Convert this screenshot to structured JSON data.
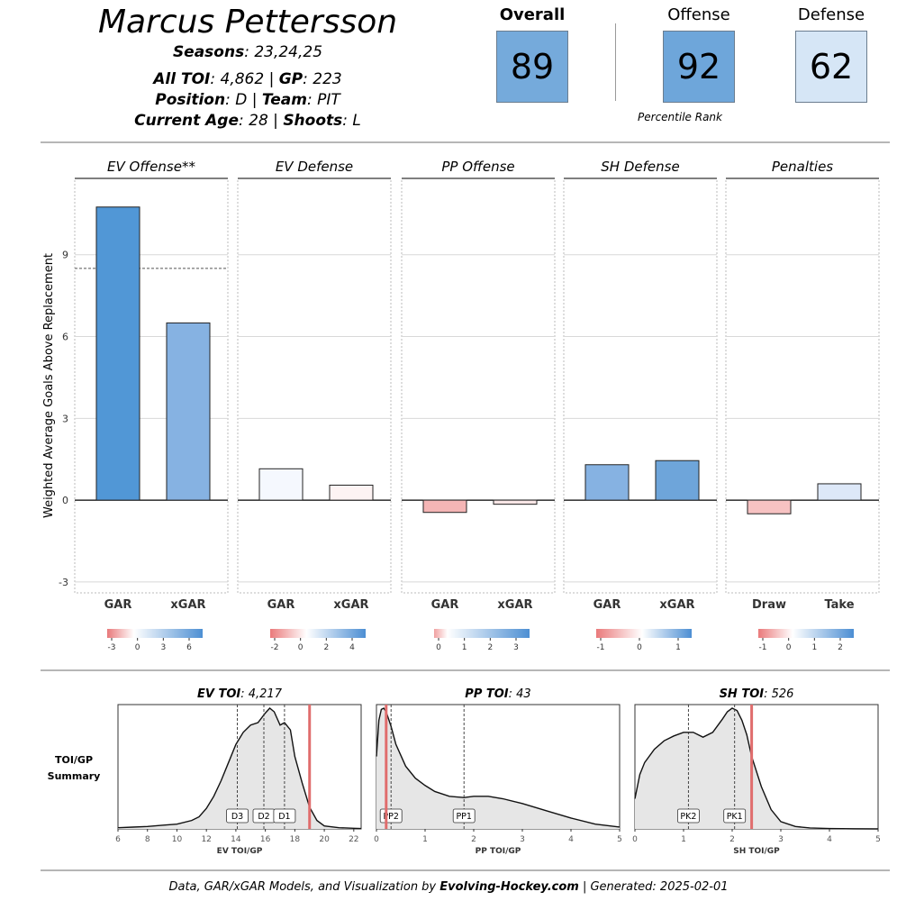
{
  "header": {
    "player_name": "Marcus Pettersson",
    "seasons_label": "Seasons",
    "seasons_value": ": 23,24,25",
    "toi_label": "All TOI",
    "toi_value": ": 4,862 | ",
    "gp_label": "GP",
    "gp_value": ": 223",
    "position_label": "Position",
    "position_value": ": D | ",
    "team_label": "Team",
    "team_value": ": PIT",
    "age_label": "Current Age",
    "age_value": ": 28 | ",
    "shoots_label": "Shoots",
    "shoots_value": ": L"
  },
  "scores": {
    "overall_label": "Overall",
    "overall_value": "89",
    "overall_color": "#75aadb",
    "offense_label": "Offense",
    "offense_value": "92",
    "offense_color": "#6ea6da",
    "defense_label": "Defense",
    "defense_value": "62",
    "defense_color": "#d6e6f6",
    "percentile_note": "Percentile Rank"
  },
  "chart_data": [
    {
      "type": "bar",
      "ylabel": "Weighted Average Goals Above Replacement",
      "ylim": [
        -3.4,
        11.8
      ],
      "yticks": [
        -3,
        0,
        3,
        6,
        9
      ],
      "reference_line": 8.5,
      "panels": [
        {
          "title": "EV Offense**",
          "categories": [
            "GAR",
            "xGAR"
          ],
          "values": [
            10.75,
            6.5
          ],
          "colors": [
            "#5197d6",
            "#86b2e2"
          ],
          "legend_ticks": [
            "-3",
            "0",
            "3",
            "6"
          ]
        },
        {
          "title": "EV Defense",
          "categories": [
            "GAR",
            "xGAR"
          ],
          "values": [
            1.15,
            0.55
          ],
          "colors": [
            "#f5f8fe",
            "#fdf3f3"
          ],
          "legend_ticks": [
            "-2",
            "0",
            "2",
            "4"
          ]
        },
        {
          "title": "PP Offense",
          "categories": [
            "GAR",
            "xGAR"
          ],
          "values": [
            -0.45,
            -0.15
          ],
          "colors": [
            "#f4b5b5",
            "#f9e6e6"
          ],
          "legend_ticks": [
            "0",
            "1",
            "2",
            "3"
          ]
        },
        {
          "title": "SH Defense",
          "categories": [
            "GAR",
            "xGAR"
          ],
          "values": [
            1.3,
            1.45
          ],
          "colors": [
            "#86b2e2",
            "#6ea5da"
          ],
          "legend_ticks": [
            "-1",
            "0",
            "1"
          ]
        },
        {
          "title": "Penalties",
          "categories": [
            "Draw",
            "Take"
          ],
          "values": [
            -0.5,
            0.6
          ],
          "colors": [
            "#f7c2c2",
            "#dde8f8"
          ],
          "legend_ticks": [
            "-1",
            "0",
            "1",
            "2"
          ]
        }
      ]
    },
    {
      "type": "area",
      "row_label": [
        "TOI/GP",
        "Summary"
      ],
      "panels": [
        {
          "title_label": "EV TOI",
          "title_value": ": 4,217",
          "xlabel": "EV TOI/GP",
          "xlim": [
            6,
            22.5
          ],
          "xticks": [
            6,
            8,
            10,
            12,
            14,
            16,
            18,
            20,
            22
          ],
          "player_value": 19.0,
          "markers": [
            {
              "label": "D3",
              "x": 14.1
            },
            {
              "label": "D2",
              "x": 15.9
            },
            {
              "label": "D1",
              "x": 17.3
            }
          ],
          "density_x": [
            6,
            7,
            8,
            9,
            10,
            11,
            11.5,
            12,
            12.5,
            13,
            13.5,
            14,
            14.5,
            15,
            15.5,
            16,
            16.3,
            16.6,
            17,
            17.3,
            17.7,
            18,
            18.5,
            19,
            19.5,
            20,
            21,
            22,
            22.5
          ],
          "density_y": [
            0.01,
            0.015,
            0.02,
            0.03,
            0.04,
            0.07,
            0.1,
            0.17,
            0.27,
            0.4,
            0.55,
            0.7,
            0.8,
            0.86,
            0.88,
            0.96,
            1.0,
            0.97,
            0.86,
            0.88,
            0.82,
            0.6,
            0.38,
            0.18,
            0.07,
            0.025,
            0.01,
            0.005,
            0.003
          ]
        },
        {
          "title_label": "PP TOI",
          "title_value": ": 43",
          "xlabel": "PP TOI/GP",
          "xlim": [
            0,
            5
          ],
          "xticks": [
            0,
            1,
            2,
            3,
            4,
            5
          ],
          "player_value": 0.2,
          "markers": [
            {
              "label": "PP2",
              "x": 0.3
            },
            {
              "label": "PP1",
              "x": 1.8
            }
          ],
          "density_x": [
            0,
            0.05,
            0.1,
            0.15,
            0.2,
            0.3,
            0.4,
            0.6,
            0.8,
            1.0,
            1.2,
            1.5,
            1.8,
            2.0,
            2.3,
            2.6,
            3.0,
            3.5,
            4.0,
            4.5,
            5.0
          ],
          "density_y": [
            0.6,
            0.9,
            0.99,
            1.0,
            0.97,
            0.85,
            0.7,
            0.52,
            0.42,
            0.36,
            0.31,
            0.27,
            0.26,
            0.27,
            0.27,
            0.25,
            0.21,
            0.15,
            0.09,
            0.04,
            0.015
          ]
        },
        {
          "title_label": "SH TOI",
          "title_value": ": 526",
          "xlabel": "SH TOI/GP",
          "xlim": [
            0,
            5
          ],
          "xticks": [
            0,
            1,
            2,
            3,
            4,
            5
          ],
          "player_value": 2.4,
          "markers": [
            {
              "label": "PK2",
              "x": 1.1
            },
            {
              "label": "PK1",
              "x": 2.05
            }
          ],
          "density_x": [
            0,
            0.1,
            0.2,
            0.4,
            0.6,
            0.8,
            1.0,
            1.2,
            1.4,
            1.6,
            1.8,
            1.9,
            2.0,
            2.1,
            2.2,
            2.3,
            2.4,
            2.6,
            2.8,
            3.0,
            3.3,
            3.6,
            4.0,
            4.5,
            5.0
          ],
          "density_y": [
            0.25,
            0.45,
            0.55,
            0.66,
            0.73,
            0.77,
            0.8,
            0.8,
            0.76,
            0.8,
            0.91,
            0.97,
            1.0,
            0.98,
            0.9,
            0.78,
            0.6,
            0.35,
            0.16,
            0.06,
            0.02,
            0.008,
            0.003,
            0.001,
            0.0
          ]
        }
      ]
    }
  ],
  "footer": {
    "prefix": "Data, GAR/xGAR Models, and Visualization by ",
    "site": "Evolving-Hockey.com",
    "suffix": " | Generated: 2025-02-01"
  }
}
